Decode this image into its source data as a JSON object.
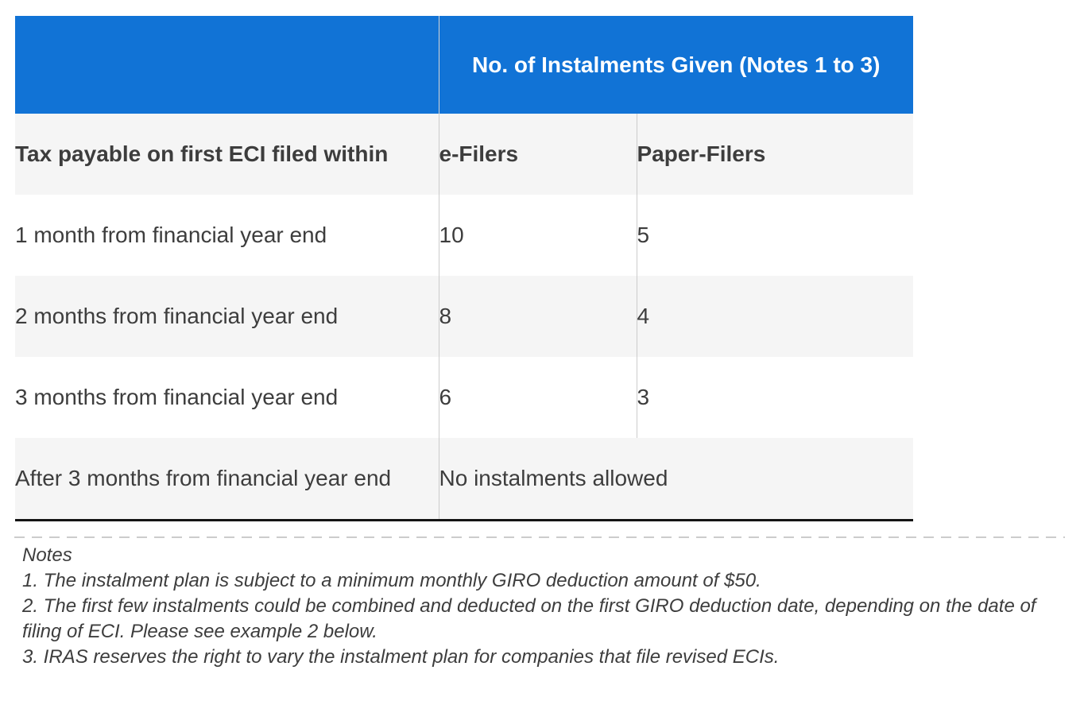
{
  "table": {
    "span_header": {
      "title": "No. of Instalments Given (Notes 1 to 3)"
    },
    "columns": {
      "criteria": "Tax payable on first ECI filed within",
      "e_filers": "e-Filers",
      "paper_filers": "Paper-Filers"
    },
    "rows": [
      {
        "criteria": "1 month from financial year end",
        "e_filers": "10",
        "paper_filers": "5"
      },
      {
        "criteria": "2 months from financial year end",
        "e_filers": "8",
        "paper_filers": "4"
      },
      {
        "criteria": "3 months from financial year end",
        "e_filers": "6",
        "paper_filers": "3"
      },
      {
        "criteria": "After 3 months from financial year end",
        "merged_value": "No instalments allowed"
      }
    ],
    "colors": {
      "header_background": "#1173d6",
      "header_text": "#ffffff",
      "alt_row_background": "#f5f5f5",
      "column_divider": "#cccccc",
      "bottom_border": "#141414",
      "body_text": "#3d3d3d"
    }
  },
  "notes": {
    "heading": "Notes",
    "items": [
      "1. The instalment plan is subject to a minimum monthly GIRO deduction amount of $50.",
      "2. The first few instalments could be combined and deducted on the first GIRO deduction date, depending on the date of filing of ECI. Please see example 2 below.",
      "3. IRAS reserves the right to vary the instalment plan for companies that file revised ECIs."
    ]
  }
}
